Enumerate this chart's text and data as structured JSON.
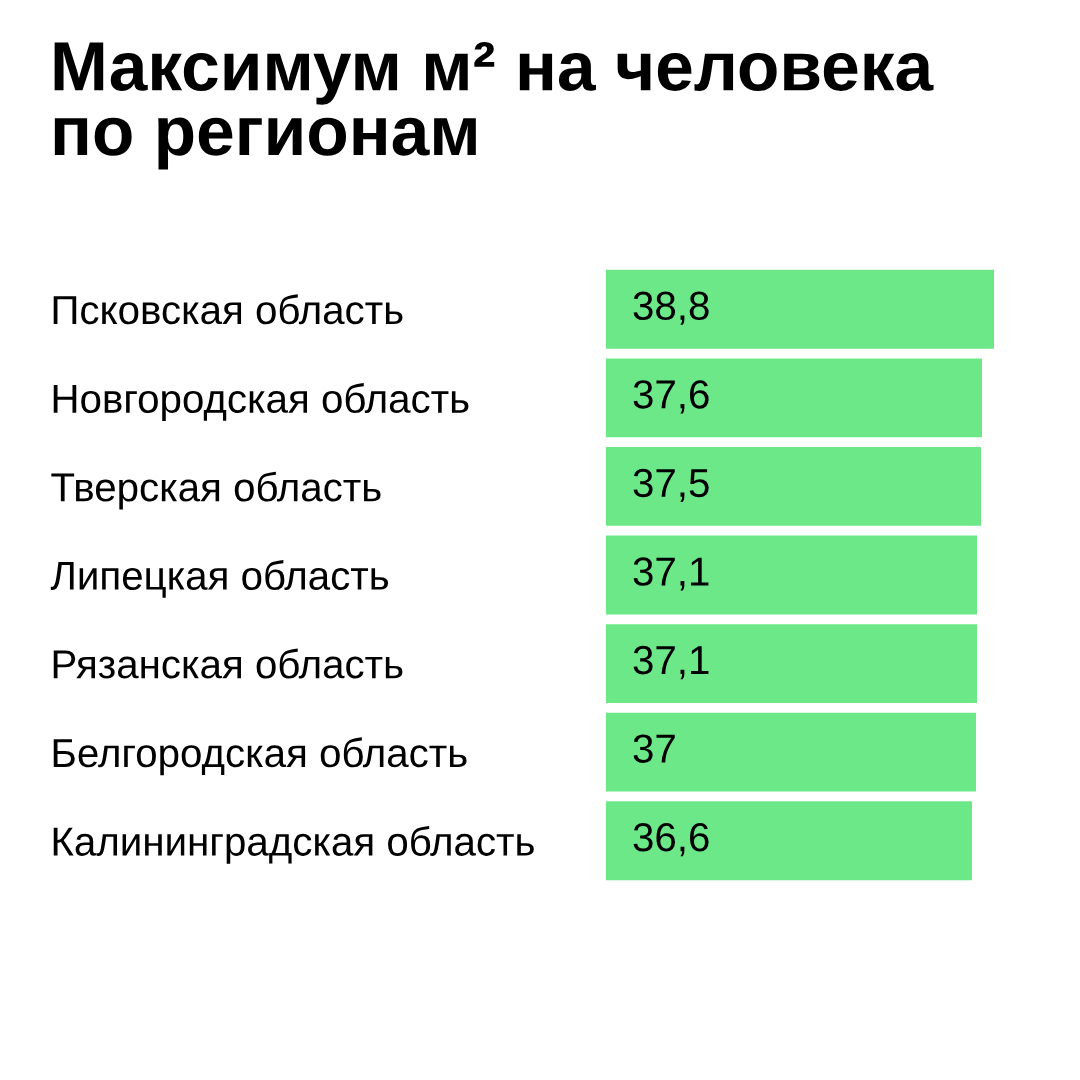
{
  "chart_data": {
    "type": "bar",
    "orientation": "horizontal",
    "title": "Максимум м² на человека\nпо регионам",
    "categories": [
      "Псковская область",
      "Новгородская область",
      "Тверская область",
      "Липецкая область",
      "Рязанская область",
      "Белгородская область",
      "Калининградская область"
    ],
    "values": [
      38.8,
      37.6,
      37.5,
      37.1,
      37.1,
      37,
      36.6
    ],
    "value_labels": [
      "38,8",
      "37,6",
      "37,5",
      "37,1",
      "37,1",
      "37",
      "36,6"
    ],
    "color": "#6ce888",
    "grid": false,
    "legend": false
  }
}
